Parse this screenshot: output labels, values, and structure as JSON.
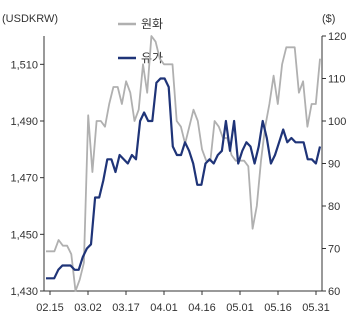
{
  "chart_data": {
    "type": "line",
    "left_unit": "(USDKRW)",
    "right_unit": "($)",
    "x_ticks": [
      "02.15",
      "03.02",
      "03.17",
      "04.01",
      "04.16",
      "05.01",
      "05.16",
      "05.31"
    ],
    "y_left_ticks": [
      "1,430",
      "1,450",
      "1,470",
      "1,490",
      "1,510"
    ],
    "y_right_ticks": [
      "60",
      "70",
      "80",
      "90",
      "100",
      "110",
      "120"
    ],
    "y_left_range": [
      1430,
      1520
    ],
    "y_right_range": [
      60,
      120
    ],
    "grid": false,
    "legend_position": "top-center",
    "series": [
      {
        "name": "원화",
        "axis": "left",
        "color": "#b0b0b0",
        "values": [
          1444,
          1444,
          1444,
          1448,
          1446,
          1446,
          1443,
          1430,
          1434,
          1440,
          1492,
          1472,
          1490,
          1490,
          1488,
          1496,
          1502,
          1502,
          1496,
          1504,
          1500,
          1490,
          1494,
          1510,
          1500,
          1520,
          1518,
          1512,
          1510,
          1510,
          1510,
          1490,
          1488,
          1482,
          1488,
          1494,
          1490,
          1480,
          1476,
          1476,
          1490,
          1488,
          1484,
          1484,
          1478,
          1476,
          1476,
          1476,
          1474,
          1452,
          1460,
          1476,
          1488,
          1496,
          1506,
          1496,
          1510,
          1516,
          1516,
          1516,
          1500,
          1504,
          1488,
          1496,
          1496,
          1512
        ]
      },
      {
        "name": "유가",
        "axis": "right",
        "color": "#1f3478",
        "values": [
          63,
          63,
          63,
          65,
          66,
          66,
          66,
          65,
          65,
          68,
          70,
          71,
          82,
          82,
          86,
          91,
          91,
          88,
          92,
          91,
          90,
          92,
          91,
          100,
          102,
          100,
          100,
          109,
          110,
          110,
          108,
          94,
          92,
          92,
          95,
          93,
          90,
          85,
          85,
          90,
          91,
          90,
          92,
          93,
          100,
          93,
          100,
          90,
          93,
          95,
          94,
          90,
          94,
          100,
          96,
          90,
          92,
          95,
          98,
          95,
          96,
          95,
          95,
          95,
          91,
          91,
          90,
          94
        ]
      }
    ]
  }
}
